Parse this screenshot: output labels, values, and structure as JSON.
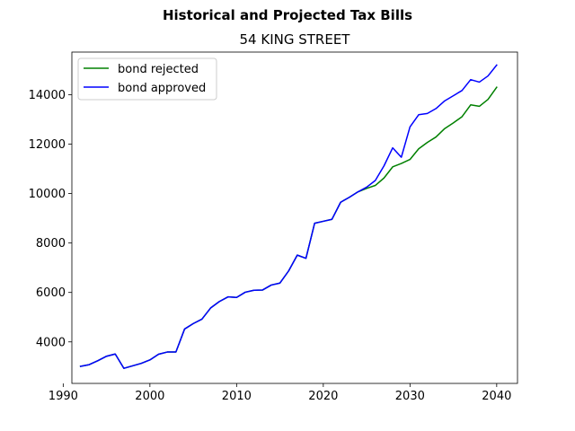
{
  "chart_data": {
    "type": "line",
    "suptitle": "Historical and Projected Tax Bills",
    "title": "54 KING STREET",
    "xlabel": "",
    "ylabel": "",
    "xlim": [
      1991,
      2042.4
    ],
    "ylim": [
      2320,
      15725
    ],
    "xticks": [
      1990,
      2000,
      2010,
      2020,
      2030,
      2040
    ],
    "yticks": [
      4000,
      6000,
      8000,
      10000,
      12000,
      14000
    ],
    "legend_position": "upper-left",
    "grid": false,
    "series": [
      {
        "name": "bond rejected",
        "color": "#008000",
        "x": [
          1992,
          1993,
          1994,
          1995,
          1996,
          1997,
          1998,
          1999,
          2000,
          2001,
          2002,
          2003,
          2004,
          2005,
          2006,
          2007,
          2008,
          2009,
          2010,
          2011,
          2012,
          2013,
          2014,
          2015,
          2016,
          2017,
          2018,
          2019,
          2020,
          2021,
          2022,
          2023,
          2024,
          2025,
          2026,
          2027,
          2028,
          2029,
          2030,
          2031,
          2032,
          2033,
          2034,
          2035,
          2036,
          2037,
          2038,
          2039,
          2040
        ],
        "values": [
          3010,
          3080,
          3240,
          3420,
          3510,
          2930,
          3030,
          3130,
          3270,
          3500,
          3590,
          3590,
          4520,
          4740,
          4920,
          5370,
          5630,
          5820,
          5800,
          6010,
          6090,
          6100,
          6300,
          6380,
          6870,
          7510,
          7380,
          8800,
          8880,
          8960,
          9650,
          9850,
          10070,
          10210,
          10330,
          10630,
          11080,
          11220,
          11380,
          11810,
          12070,
          12290,
          12630,
          12860,
          13110,
          13590,
          13530,
          13810,
          14300
        ]
      },
      {
        "name": "bond approved",
        "color": "#0000ff",
        "x": [
          1992,
          1993,
          1994,
          1995,
          1996,
          1997,
          1998,
          1999,
          2000,
          2001,
          2002,
          2003,
          2004,
          2005,
          2006,
          2007,
          2008,
          2009,
          2010,
          2011,
          2012,
          2013,
          2014,
          2015,
          2016,
          2017,
          2018,
          2019,
          2020,
          2021,
          2022,
          2023,
          2024,
          2025,
          2026,
          2027,
          2028,
          2029,
          2030,
          2031,
          2032,
          2033,
          2034,
          2035,
          2036,
          2037,
          2038,
          2039,
          2040
        ],
        "values": [
          3010,
          3080,
          3240,
          3420,
          3510,
          2930,
          3030,
          3130,
          3270,
          3500,
          3590,
          3590,
          4520,
          4740,
          4920,
          5370,
          5630,
          5820,
          5800,
          6010,
          6090,
          6100,
          6300,
          6380,
          6870,
          7510,
          7380,
          8800,
          8880,
          8960,
          9650,
          9850,
          10070,
          10260,
          10530,
          11120,
          11850,
          11470,
          12700,
          13190,
          13240,
          13440,
          13750,
          13960,
          14170,
          14610,
          14510,
          14760,
          15200
        ]
      }
    ]
  }
}
